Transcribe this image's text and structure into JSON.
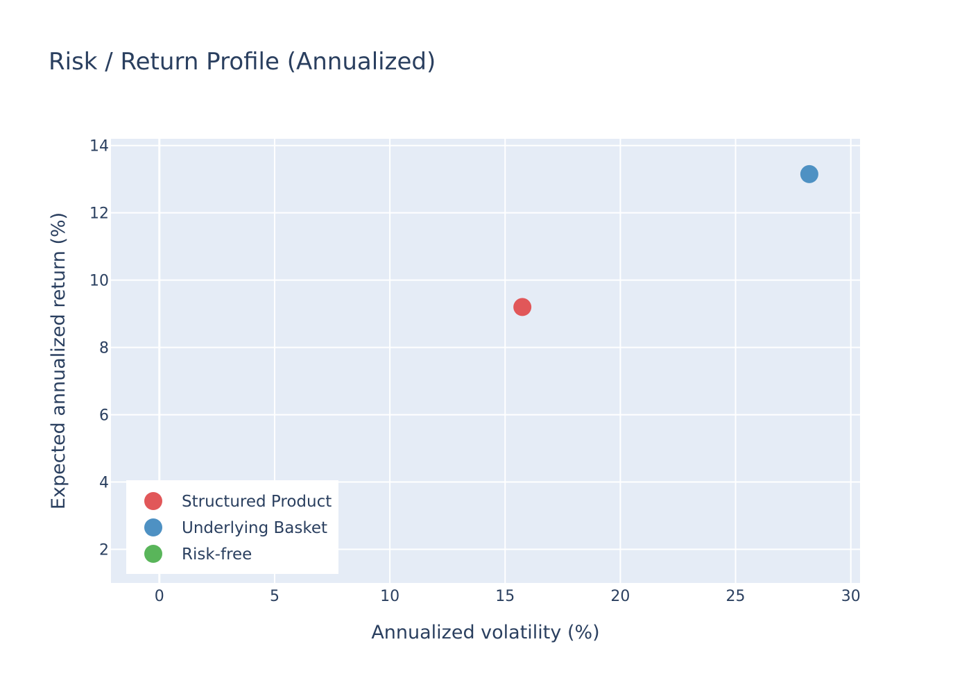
{
  "chart_data": {
    "type": "scatter",
    "title": "Risk / Return Profile (Annualized)",
    "xlabel": "Annualized volatility (%)",
    "ylabel": "Expected annualized return (%)",
    "xlim": [
      -2.1,
      30.4
    ],
    "ylim": [
      1.0,
      14.2
    ],
    "xticks": [
      0,
      5,
      10,
      15,
      20,
      25,
      30
    ],
    "yticks": [
      2,
      4,
      6,
      8,
      10,
      12,
      14
    ],
    "grid": true,
    "legend_position": "bottom-left",
    "series": [
      {
        "name": "Structured Product",
        "color": "#e15759",
        "x": [
          15.75
        ],
        "y": [
          9.2
        ]
      },
      {
        "name": "Underlying Basket",
        "color": "#4e91c3",
        "x": [
          28.2
        ],
        "y": [
          13.15
        ]
      },
      {
        "name": "Risk-free",
        "color": "#59b55a",
        "x": [],
        "y": []
      }
    ]
  }
}
